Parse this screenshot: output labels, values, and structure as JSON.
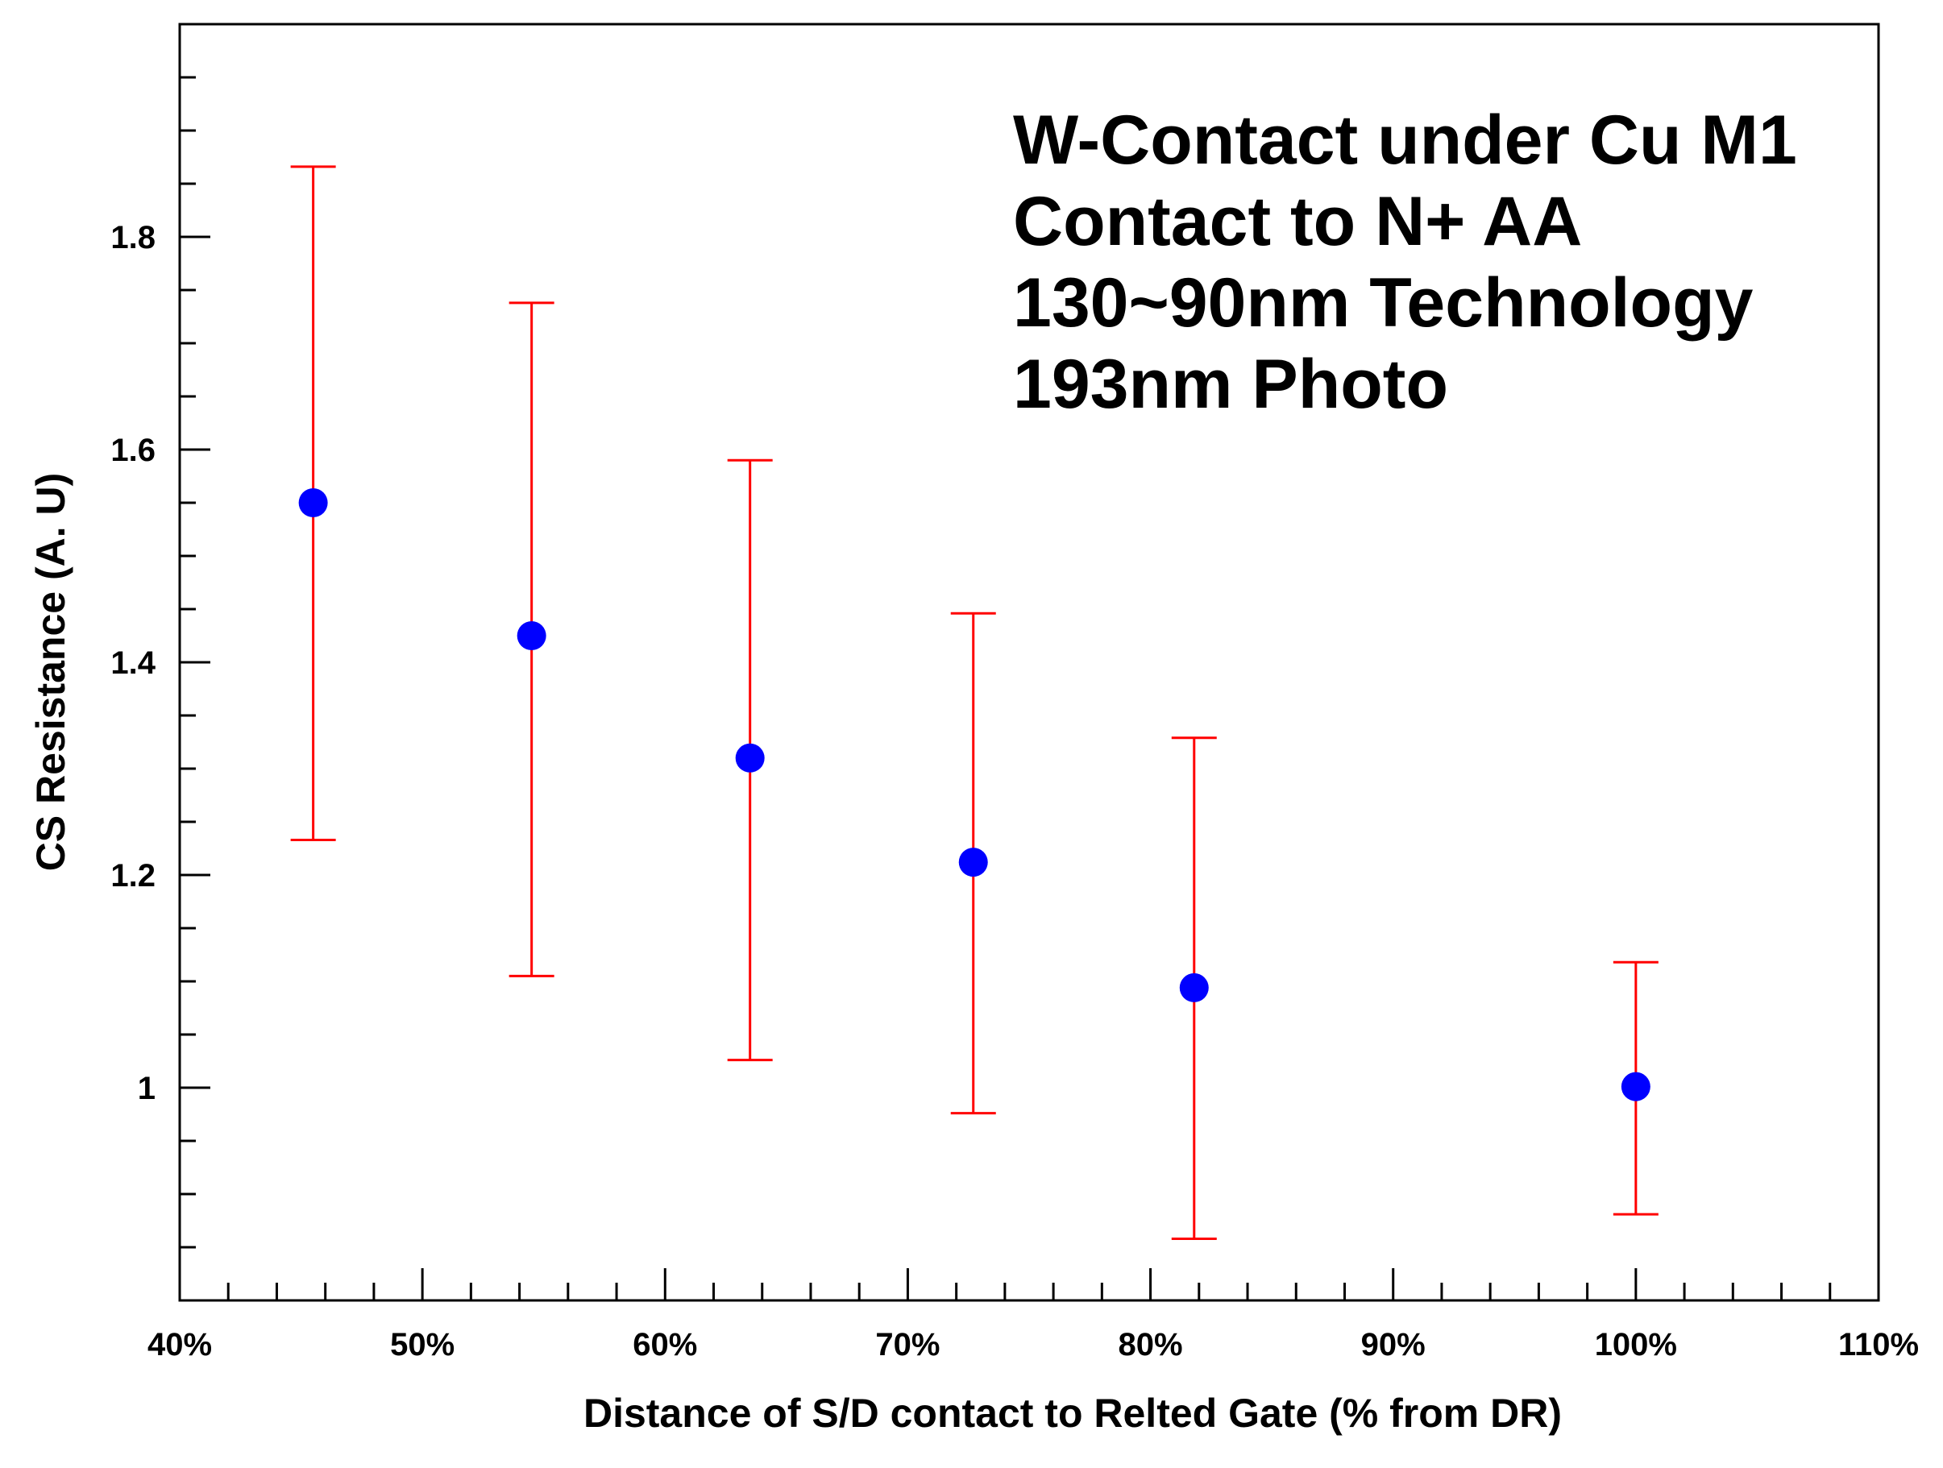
{
  "chart_data": {
    "type": "scatter",
    "xlabel": "Distance of S/D contact to Relted Gate (% from DR)",
    "ylabel": "CS Resistance (A. U)",
    "xlim": [
      40,
      110
    ],
    "ylim": [
      0.8,
      2.0
    ],
    "x_ticks": [
      40,
      50,
      60,
      70,
      80,
      90,
      100,
      110
    ],
    "x_tick_labels": [
      "40%",
      "50%",
      "60%",
      "70%",
      "80%",
      "90%",
      "100%",
      "110%"
    ],
    "y_ticks": [
      1.0,
      1.2,
      1.4,
      1.6,
      1.8
    ],
    "y_tick_labels": [
      "1",
      "1.2",
      "1.4",
      "1.6",
      "1.8"
    ],
    "grid": false,
    "annotations": [
      "W-Contact under Cu M1",
      "Contact to N+ AA",
      "130~90nm Technology",
      "193nm Photo"
    ],
    "series": [
      {
        "x": [
          45.5,
          54.5,
          63.5,
          72.7,
          81.8,
          100
        ],
        "y": [
          1.55,
          1.425,
          1.31,
          1.212,
          1.094,
          1.001
        ],
        "error_low": [
          1.233,
          1.105,
          1.026,
          0.976,
          0.858,
          0.881
        ],
        "error_high": [
          1.866,
          1.738,
          1.59,
          1.446,
          1.329,
          1.118
        ],
        "marker_color": "#0000ff",
        "error_color": "#ff0000"
      }
    ]
  }
}
